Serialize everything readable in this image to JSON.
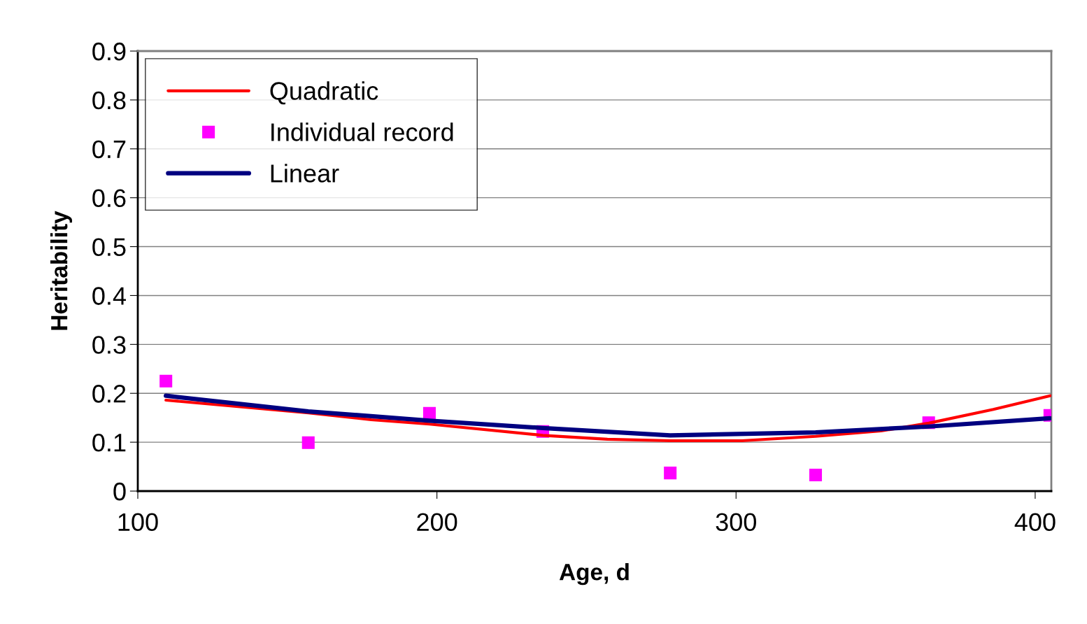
{
  "chart_data": {
    "type": "line",
    "xlabel": "Age, d",
    "ylabel": "Heritability",
    "xlim": [
      100,
      405.4
    ],
    "xticks": [
      100,
      200,
      300,
      400
    ],
    "ylim": [
      0,
      0.9
    ],
    "yticks": [
      0,
      0.1,
      0.2,
      0.3,
      0.4,
      0.5,
      0.6,
      0.7,
      0.8,
      0.9
    ],
    "grid": "y",
    "legend": "top left",
    "series": [
      {
        "name": "Quadratic",
        "color": "#ff0000",
        "marker": "none",
        "x": [
          109.4,
          157,
          178,
          197.5,
          235.4,
          257,
          278,
          302,
          326.6,
          348.5,
          364.4,
          386,
          405
        ],
        "values": [
          0.186,
          0.16,
          0.146,
          0.137,
          0.114,
          0.106,
          0.103,
          0.103,
          0.112,
          0.123,
          0.139,
          0.167,
          0.195
        ]
      },
      {
        "name": "Individual record",
        "type": "scatter",
        "color": "#ff00ff",
        "marker": "square",
        "x": [
          109.4,
          157,
          197.5,
          235.4,
          278,
          326.6,
          364.4,
          404.9
        ],
        "values": [
          0.225,
          0.099,
          0.159,
          0.122,
          0.037,
          0.033,
          0.14,
          0.155
        ]
      },
      {
        "name": "Linear",
        "color": "#000080",
        "marker": "none",
        "x": [
          109.4,
          157,
          197.5,
          235.4,
          278,
          326.6,
          364.4,
          404.9
        ],
        "values": [
          0.195,
          0.163,
          0.144,
          0.129,
          0.114,
          0.12,
          0.132,
          0.149
        ]
      }
    ]
  }
}
